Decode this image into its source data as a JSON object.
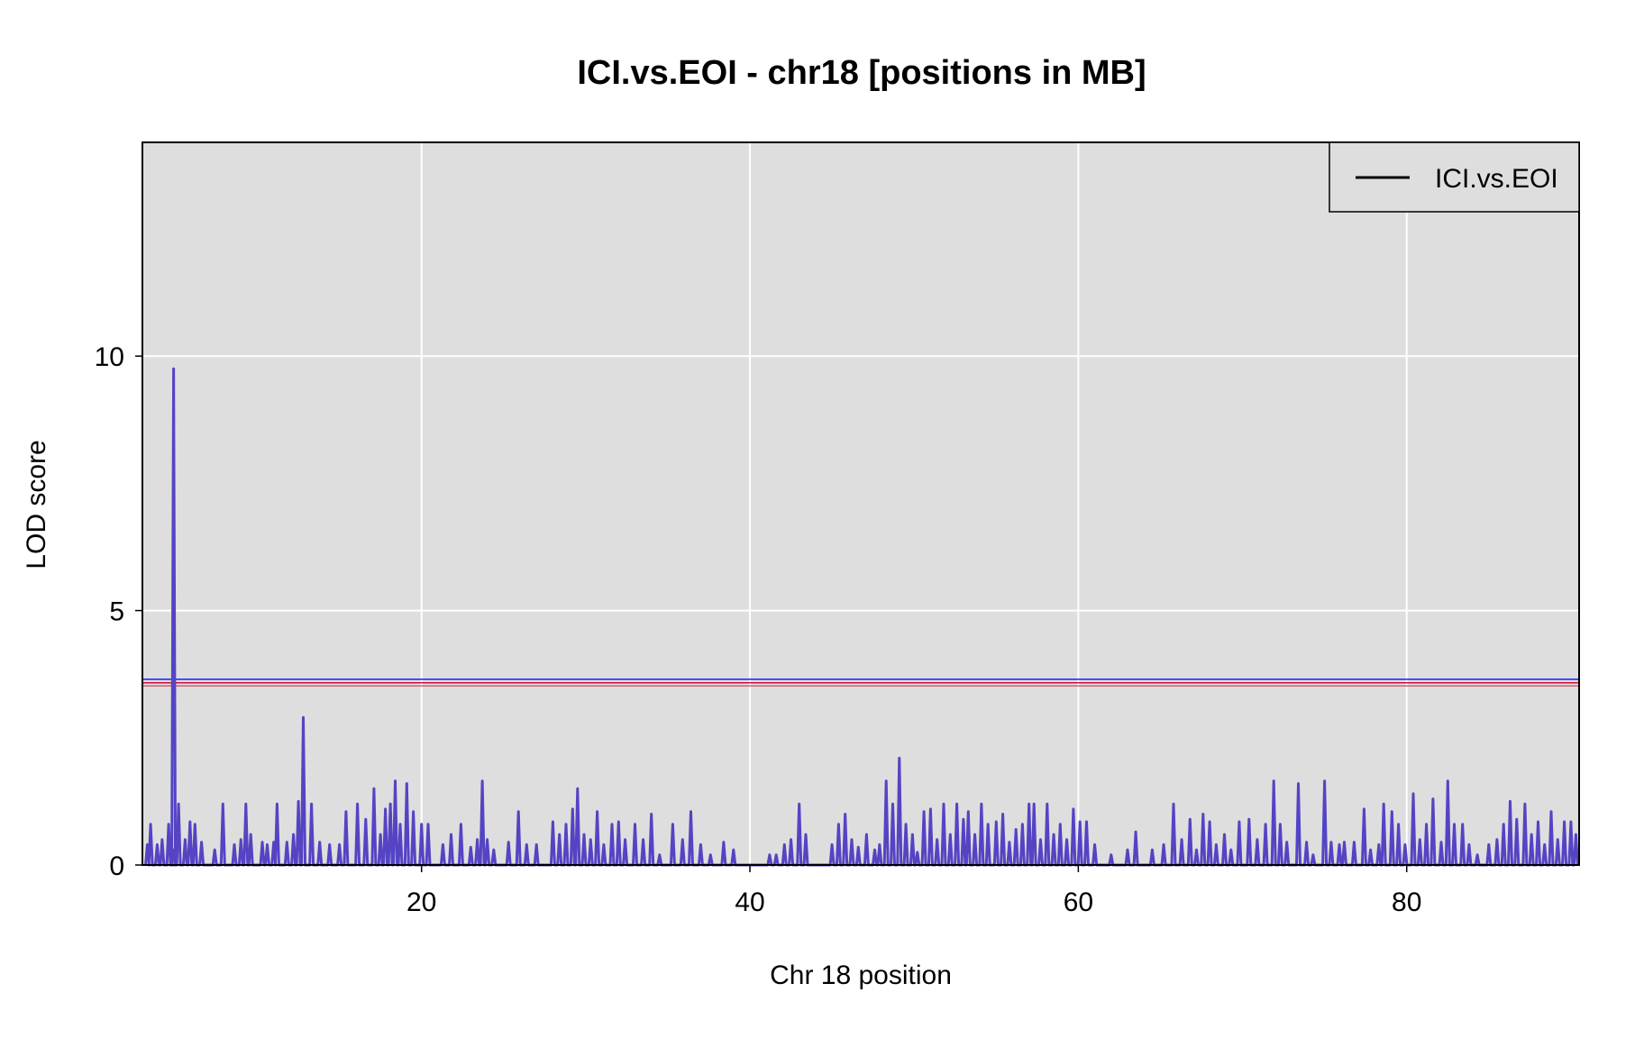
{
  "chart_data": {
    "type": "line",
    "title": "ICI.vs.EOI - chr18 [positions in MB]",
    "xlabel": "Chr 18 position",
    "ylabel": "LOD score",
    "xlim": [
      3,
      90.5
    ],
    "ylim": [
      0,
      14.2
    ],
    "x_ticks": [
      20,
      40,
      60,
      80
    ],
    "x_tick_labels": [
      "20",
      "40",
      "60",
      "80"
    ],
    "y_ticks": [
      0,
      5,
      10
    ],
    "y_tick_labels": [
      "0",
      "5",
      "10"
    ],
    "grid": true,
    "background": "#dedede",
    "grid_color": "#ffffff",
    "legend": {
      "position": "top-right",
      "entries": [
        {
          "label": "ICI.vs.EOI",
          "color": "#000000"
        }
      ]
    },
    "thresholds": [
      {
        "value": 3.65,
        "color": "#1a1aff"
      },
      {
        "value": 3.58,
        "color": "#c8102e"
      },
      {
        "value": 3.52,
        "color": "#c86478"
      }
    ],
    "series": [
      {
        "name": "ICI.vs.EOI",
        "color": "#5444c4",
        "peaks": [
          [
            3.3,
            0.4
          ],
          [
            3.5,
            0.8
          ],
          [
            3.9,
            0.4
          ],
          [
            4.2,
            0.5
          ],
          [
            4.6,
            0.8
          ],
          [
            4.9,
            0.3
          ],
          [
            4.9,
            9.75
          ],
          [
            5.2,
            1.2
          ],
          [
            5.6,
            0.5
          ],
          [
            5.9,
            0.85
          ],
          [
            6.2,
            0.8
          ],
          [
            6.6,
            0.45
          ],
          [
            7.4,
            0.3
          ],
          [
            7.9,
            1.2
          ],
          [
            8.6,
            0.4
          ],
          [
            9.0,
            0.5
          ],
          [
            9.3,
            1.2
          ],
          [
            9.6,
            0.6
          ],
          [
            10.3,
            0.45
          ],
          [
            10.6,
            0.4
          ],
          [
            11.0,
            0.45
          ],
          [
            11.2,
            1.2
          ],
          [
            11.8,
            0.45
          ],
          [
            12.2,
            0.6
          ],
          [
            12.5,
            1.25
          ],
          [
            12.8,
            2.9
          ],
          [
            13.3,
            1.2
          ],
          [
            13.8,
            0.45
          ],
          [
            14.4,
            0.4
          ],
          [
            15.0,
            0.4
          ],
          [
            15.4,
            1.05
          ],
          [
            16.1,
            1.2
          ],
          [
            16.6,
            0.9
          ],
          [
            17.1,
            1.5
          ],
          [
            17.5,
            0.6
          ],
          [
            17.8,
            1.1
          ],
          [
            18.1,
            1.2
          ],
          [
            18.4,
            1.65
          ],
          [
            18.7,
            0.8
          ],
          [
            19.1,
            1.6
          ],
          [
            19.5,
            1.05
          ],
          [
            20.0,
            0.8
          ],
          [
            20.4,
            0.8
          ],
          [
            21.3,
            0.4
          ],
          [
            21.8,
            0.6
          ],
          [
            22.4,
            0.8
          ],
          [
            23.0,
            0.35
          ],
          [
            23.4,
            0.5
          ],
          [
            23.7,
            1.65
          ],
          [
            24.0,
            0.5
          ],
          [
            24.4,
            0.3
          ],
          [
            25.3,
            0.45
          ],
          [
            25.9,
            1.05
          ],
          [
            26.4,
            0.4
          ],
          [
            27.0,
            0.4
          ],
          [
            28.0,
            0.85
          ],
          [
            28.4,
            0.6
          ],
          [
            28.8,
            0.8
          ],
          [
            29.2,
            1.1
          ],
          [
            29.5,
            1.5
          ],
          [
            29.9,
            0.6
          ],
          [
            30.3,
            0.5
          ],
          [
            30.7,
            1.05
          ],
          [
            31.1,
            0.4
          ],
          [
            31.6,
            0.8
          ],
          [
            32.0,
            0.85
          ],
          [
            32.4,
            0.5
          ],
          [
            33.0,
            0.8
          ],
          [
            33.5,
            0.5
          ],
          [
            34.0,
            1.0
          ],
          [
            34.5,
            0.2
          ],
          [
            35.3,
            0.8
          ],
          [
            35.9,
            0.5
          ],
          [
            36.4,
            1.05
          ],
          [
            37.0,
            0.4
          ],
          [
            37.6,
            0.2
          ],
          [
            38.4,
            0.45
          ],
          [
            39.0,
            0.3
          ],
          [
            41.2,
            0.2
          ],
          [
            41.6,
            0.2
          ],
          [
            42.1,
            0.4
          ],
          [
            42.5,
            0.5
          ],
          [
            43.0,
            1.2
          ],
          [
            43.4,
            0.6
          ],
          [
            45.0,
            0.4
          ],
          [
            45.4,
            0.8
          ],
          [
            45.8,
            1.0
          ],
          [
            46.2,
            0.5
          ],
          [
            46.6,
            0.35
          ],
          [
            47.1,
            0.6
          ],
          [
            47.6,
            0.3
          ],
          [
            47.9,
            0.4
          ],
          [
            48.3,
            1.65
          ],
          [
            48.7,
            1.2
          ],
          [
            49.1,
            2.1
          ],
          [
            49.5,
            0.8
          ],
          [
            49.9,
            0.6
          ],
          [
            50.2,
            0.25
          ],
          [
            50.6,
            1.05
          ],
          [
            51.0,
            1.1
          ],
          [
            51.4,
            0.5
          ],
          [
            51.8,
            1.2
          ],
          [
            52.2,
            0.6
          ],
          [
            52.6,
            1.2
          ],
          [
            53.0,
            0.9
          ],
          [
            53.3,
            1.05
          ],
          [
            53.7,
            0.6
          ],
          [
            54.1,
            1.2
          ],
          [
            54.5,
            0.8
          ],
          [
            55.0,
            0.85
          ],
          [
            55.4,
            1.0
          ],
          [
            55.8,
            0.45
          ],
          [
            56.2,
            0.7
          ],
          [
            56.6,
            0.8
          ],
          [
            57.0,
            1.2
          ],
          [
            57.3,
            1.2
          ],
          [
            57.7,
            0.5
          ],
          [
            58.1,
            1.2
          ],
          [
            58.5,
            0.6
          ],
          [
            58.9,
            0.8
          ],
          [
            59.3,
            0.5
          ],
          [
            59.7,
            1.1
          ],
          [
            60.1,
            0.85
          ],
          [
            60.5,
            0.85
          ],
          [
            61.0,
            0.4
          ],
          [
            62.0,
            0.2
          ],
          [
            63.0,
            0.3
          ],
          [
            63.5,
            0.65
          ],
          [
            64.5,
            0.3
          ],
          [
            65.2,
            0.4
          ],
          [
            65.8,
            1.2
          ],
          [
            66.3,
            0.5
          ],
          [
            66.8,
            0.9
          ],
          [
            67.2,
            0.3
          ],
          [
            67.6,
            1.0
          ],
          [
            68.0,
            0.85
          ],
          [
            68.4,
            0.4
          ],
          [
            68.9,
            0.6
          ],
          [
            69.3,
            0.3
          ],
          [
            69.8,
            0.85
          ],
          [
            70.4,
            0.9
          ],
          [
            70.9,
            0.5
          ],
          [
            71.4,
            0.8
          ],
          [
            71.9,
            1.65
          ],
          [
            72.3,
            0.8
          ],
          [
            72.7,
            0.45
          ],
          [
            73.4,
            1.6
          ],
          [
            73.9,
            0.45
          ],
          [
            74.3,
            0.2
          ],
          [
            75.0,
            1.65
          ],
          [
            75.4,
            0.45
          ],
          [
            75.9,
            0.4
          ],
          [
            76.2,
            0.45
          ],
          [
            76.8,
            0.45
          ],
          [
            77.4,
            1.1
          ],
          [
            77.8,
            0.3
          ],
          [
            78.3,
            0.4
          ],
          [
            78.6,
            1.2
          ],
          [
            79.1,
            1.05
          ],
          [
            79.5,
            0.8
          ],
          [
            79.9,
            0.4
          ],
          [
            80.4,
            1.4
          ],
          [
            80.8,
            0.5
          ],
          [
            81.2,
            0.8
          ],
          [
            81.6,
            1.3
          ],
          [
            82.1,
            0.45
          ],
          [
            82.5,
            1.65
          ],
          [
            82.9,
            0.8
          ],
          [
            83.4,
            0.8
          ],
          [
            83.8,
            0.4
          ],
          [
            84.3,
            0.2
          ],
          [
            85.0,
            0.4
          ],
          [
            85.5,
            0.5
          ],
          [
            85.9,
            0.8
          ],
          [
            86.3,
            1.25
          ],
          [
            86.7,
            0.9
          ],
          [
            87.2,
            1.2
          ],
          [
            87.6,
            0.6
          ],
          [
            88.0,
            0.85
          ],
          [
            88.4,
            0.4
          ],
          [
            88.8,
            1.05
          ],
          [
            89.2,
            0.5
          ],
          [
            89.6,
            0.85
          ],
          [
            90.0,
            0.85
          ],
          [
            90.3,
            0.6
          ]
        ]
      }
    ]
  }
}
